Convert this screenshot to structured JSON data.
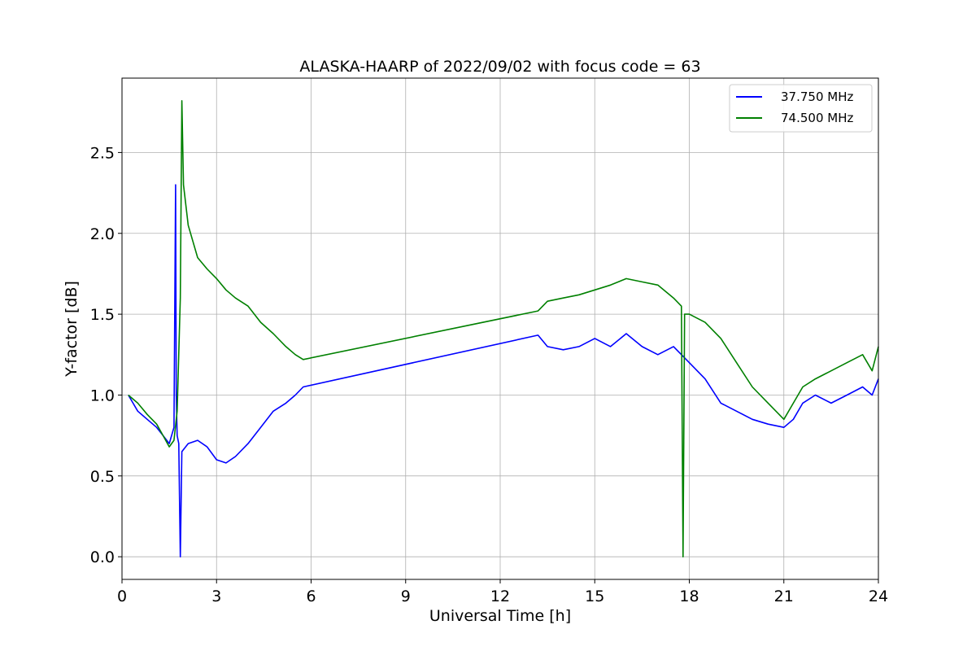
{
  "chart_data": {
    "type": "line",
    "title": "ALASKA-HAARP of 2022/09/02 with focus code = 63",
    "xlabel": "Universal Time [h]",
    "ylabel": "Y-factor [dB]",
    "xlim": [
      0,
      24
    ],
    "ylim": [
      -0.14,
      2.96
    ],
    "xticks": [
      0,
      3,
      6,
      9,
      12,
      15,
      18,
      21,
      24
    ],
    "xtick_labels": [
      "0",
      "3",
      "6",
      "9",
      "12",
      "15",
      "18",
      "21",
      "24"
    ],
    "yticks": [
      0.0,
      0.5,
      1.0,
      1.5,
      2.0,
      2.5
    ],
    "ytick_labels": [
      "0.0",
      "0.5",
      "1.0",
      "1.5",
      "2.0",
      "2.5"
    ],
    "grid": true,
    "legend_position": "top-right",
    "series": [
      {
        "name": "37.750 MHz",
        "color": "#0000ff",
        "x": [
          0.2,
          0.5,
          0.8,
          1.1,
          1.3,
          1.5,
          1.65,
          1.7,
          1.72,
          1.75,
          1.8,
          1.85,
          1.9,
          2.1,
          2.4,
          2.7,
          3.0,
          3.3,
          3.6,
          4.0,
          4.4,
          4.8,
          5.2,
          5.5,
          5.75,
          13.2,
          13.5,
          14.0,
          14.5,
          15.0,
          15.5,
          16.0,
          16.5,
          17.0,
          17.5,
          18.0,
          18.5,
          19.0,
          19.5,
          20.0,
          20.5,
          21.0,
          21.3,
          21.6,
          22.0,
          22.5,
          23.0,
          23.5,
          23.8,
          24.0
        ],
        "y": [
          1.0,
          0.9,
          0.85,
          0.8,
          0.75,
          0.7,
          0.8,
          2.3,
          1.0,
          0.75,
          0.7,
          0.0,
          0.65,
          0.7,
          0.72,
          0.68,
          0.6,
          0.58,
          0.62,
          0.7,
          0.8,
          0.9,
          0.95,
          1.0,
          1.05,
          1.37,
          1.3,
          1.28,
          1.3,
          1.35,
          1.3,
          1.38,
          1.3,
          1.25,
          1.3,
          1.2,
          1.1,
          0.95,
          0.9,
          0.85,
          0.82,
          0.8,
          0.85,
          0.95,
          1.0,
          0.95,
          1.0,
          1.05,
          1.0,
          1.1
        ]
      },
      {
        "name": "74.500 MHz",
        "color": "#008000",
        "x": [
          0.2,
          0.5,
          0.8,
          1.1,
          1.3,
          1.5,
          1.65,
          1.75,
          1.85,
          1.9,
          1.95,
          2.1,
          2.4,
          2.7,
          3.0,
          3.3,
          3.6,
          4.0,
          4.4,
          4.8,
          5.2,
          5.5,
          5.75,
          13.2,
          13.5,
          14.0,
          14.5,
          15.0,
          15.5,
          16.0,
          16.5,
          17.0,
          17.5,
          17.75,
          17.8,
          17.85,
          18.0,
          18.5,
          19.0,
          19.5,
          20.0,
          20.5,
          21.0,
          21.3,
          21.6,
          22.0,
          22.5,
          23.0,
          23.5,
          23.8,
          24.0
        ],
        "y": [
          1.0,
          0.95,
          0.88,
          0.82,
          0.75,
          0.68,
          0.72,
          0.9,
          1.6,
          2.82,
          2.3,
          2.05,
          1.85,
          1.78,
          1.72,
          1.65,
          1.6,
          1.55,
          1.45,
          1.38,
          1.3,
          1.25,
          1.22,
          1.52,
          1.58,
          1.6,
          1.62,
          1.65,
          1.68,
          1.72,
          1.7,
          1.68,
          1.6,
          1.55,
          0.0,
          1.5,
          1.5,
          1.45,
          1.35,
          1.2,
          1.05,
          0.95,
          0.85,
          0.95,
          1.05,
          1.1,
          1.15,
          1.2,
          1.25,
          1.15,
          1.3
        ]
      }
    ]
  }
}
